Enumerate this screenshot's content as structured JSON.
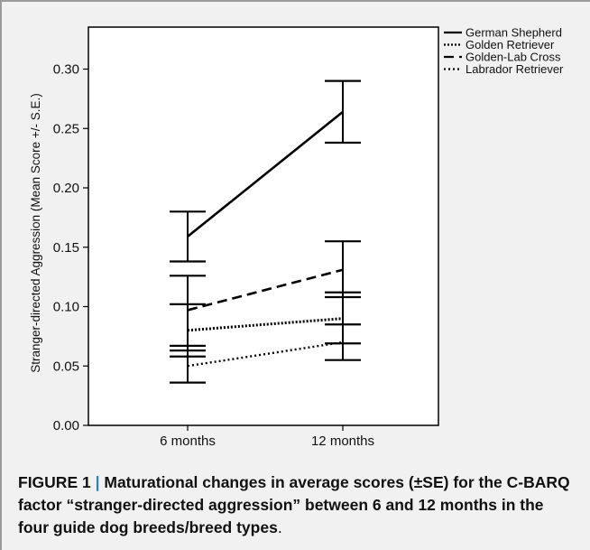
{
  "chart_data": {
    "type": "line",
    "title": "",
    "xlabel": "",
    "ylabel": "Stranger-directed Aggression (Mean Score +/- S.E.)",
    "categories": [
      "6 months",
      "12 months"
    ],
    "ylim": [
      0,
      0.3
    ],
    "yticks": [
      0.0,
      0.05,
      0.1,
      0.15,
      0.2,
      0.25,
      0.3
    ],
    "ytick_labels": [
      "0.00",
      "0.05",
      "0.10",
      "0.15",
      "0.20",
      "0.25",
      "0.30"
    ],
    "grid": false,
    "legend_position": "top-right",
    "series": [
      {
        "name": "German Shepherd",
        "style": "solid",
        "values": [
          0.159,
          0.264
        ],
        "lower": [
          0.138,
          0.238
        ],
        "upper": [
          0.18,
          0.29
        ]
      },
      {
        "name": "Golden Retriever",
        "style": "dotted",
        "values": [
          0.08,
          0.09
        ],
        "lower": [
          0.058,
          0.069
        ],
        "upper": [
          0.102,
          0.112
        ]
      },
      {
        "name": "Golden-Lab Cross",
        "style": "dashed",
        "values": [
          0.097,
          0.131
        ],
        "lower": [
          0.067,
          0.108
        ],
        "upper": [
          0.126,
          0.155
        ]
      },
      {
        "name": "Labrador Retriever",
        "style": "dotted-fine",
        "values": [
          0.05,
          0.07
        ],
        "lower": [
          0.036,
          0.055
        ],
        "upper": [
          0.063,
          0.085
        ]
      }
    ]
  },
  "caption": {
    "label": "FIGURE 1",
    "separator": "|",
    "text": "Maturational changes in average scores (±SE) for the C-BARQ factor “stranger-directed aggression” between 6 and 12 months in the four guide dog breeds/breed types",
    "end": "."
  },
  "colors": {
    "line": "#000000",
    "background": "#f1f1f1",
    "accent": "#2d7fc1"
  }
}
